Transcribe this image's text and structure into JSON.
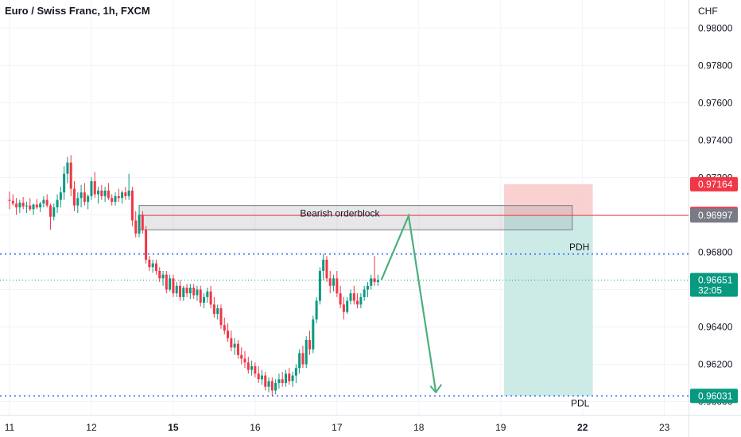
{
  "header": {
    "symbol": "Euro / Swiss Franc, 1h, FXCM"
  },
  "chart_data": {
    "type": "candlestick",
    "currency_label": "CHF",
    "y_ticks": [
      0.96,
      0.962,
      0.964,
      0.966,
      0.968,
      0.97,
      0.972,
      0.974,
      0.976,
      0.978,
      0.98
    ],
    "y_tick_labels": [
      "0.96000",
      "0.96200",
      "0.96400",
      "0.96600",
      "0.96800",
      "0.97000",
      "0.97200",
      "0.97400",
      "0.97600",
      "0.97800",
      "0.98000"
    ],
    "ylim": [
      0.9593,
      0.9815
    ],
    "x_ticks": [
      {
        "label": "11",
        "bold": false,
        "index": 0
      },
      {
        "label": "12",
        "bold": false,
        "index": 24
      },
      {
        "label": "15",
        "bold": true,
        "index": 48
      },
      {
        "label": "16",
        "bold": false,
        "index": 72
      },
      {
        "label": "17",
        "bold": false,
        "index": 96
      },
      {
        "label": "18",
        "bold": false,
        "index": 120
      },
      {
        "label": "19",
        "bold": false,
        "index": 144
      },
      {
        "label": "22",
        "bold": true,
        "index": 168
      },
      {
        "label": "23",
        "bold": false,
        "index": 192
      }
    ],
    "candles": [
      [
        0.9708,
        0.97125,
        0.9703,
        0.97075
      ],
      [
        0.97075,
        0.9711,
        0.9705,
        0.9706
      ],
      [
        0.9706,
        0.9709,
        0.97,
        0.9704
      ],
      [
        0.9704,
        0.9708,
        0.9701,
        0.97065
      ],
      [
        0.97065,
        0.97095,
        0.9703,
        0.97045
      ],
      [
        0.97045,
        0.9707,
        0.9701,
        0.9705
      ],
      [
        0.9705,
        0.9709,
        0.9702,
        0.9703
      ],
      [
        0.9703,
        0.9706,
        0.97,
        0.97055
      ],
      [
        0.97055,
        0.97085,
        0.9703,
        0.9704
      ],
      [
        0.9704,
        0.9707,
        0.97015,
        0.9706
      ],
      [
        0.9706,
        0.971,
        0.9704,
        0.9708
      ],
      [
        0.9708,
        0.9711,
        0.9704,
        0.9705
      ],
      [
        0.9705,
        0.9706,
        0.9692,
        0.9699
      ],
      [
        0.9699,
        0.9706,
        0.9697,
        0.9704
      ],
      [
        0.9704,
        0.9711,
        0.9701,
        0.9708
      ],
      [
        0.9708,
        0.9715,
        0.9704,
        0.9712
      ],
      [
        0.9712,
        0.9726,
        0.9708,
        0.9722
      ],
      [
        0.9722,
        0.9731,
        0.9717,
        0.9728
      ],
      [
        0.9728,
        0.9732,
        0.971,
        0.9714
      ],
      [
        0.9714,
        0.9718,
        0.9702,
        0.9705
      ],
      [
        0.9705,
        0.9712,
        0.9701,
        0.9709
      ],
      [
        0.9709,
        0.9716,
        0.9704,
        0.9712
      ],
      [
        0.9712,
        0.9717,
        0.9705,
        0.9707
      ],
      [
        0.9707,
        0.9711,
        0.9703,
        0.971
      ],
      [
        0.971,
        0.972,
        0.9708,
        0.9718
      ],
      [
        0.9718,
        0.9723,
        0.9709,
        0.9711
      ],
      [
        0.9711,
        0.9715,
        0.9706,
        0.9713
      ],
      [
        0.9713,
        0.9716,
        0.9708,
        0.971
      ],
      [
        0.971,
        0.9715,
        0.9707,
        0.9713
      ],
      [
        0.9713,
        0.9717,
        0.9708,
        0.9709
      ],
      [
        0.9709,
        0.9711,
        0.9705,
        0.9707
      ],
      [
        0.9707,
        0.9712,
        0.9705,
        0.971
      ],
      [
        0.971,
        0.9714,
        0.9707,
        0.9709
      ],
      [
        0.9709,
        0.9713,
        0.9706,
        0.9712
      ],
      [
        0.9712,
        0.9715,
        0.9708,
        0.971
      ],
      [
        0.971,
        0.9722,
        0.9708,
        0.9713
      ],
      [
        0.9713,
        0.9715,
        0.9694,
        0.9697
      ],
      [
        0.9697,
        0.9702,
        0.9688,
        0.969
      ],
      [
        0.969,
        0.9705,
        0.9688,
        0.97
      ],
      [
        0.97,
        0.9702,
        0.969,
        0.9692
      ],
      [
        0.9692,
        0.9694,
        0.9674,
        0.9676
      ],
      [
        0.9676,
        0.9678,
        0.967,
        0.9672
      ],
      [
        0.9672,
        0.9676,
        0.9669,
        0.9674
      ],
      [
        0.9674,
        0.9676,
        0.9668,
        0.967
      ],
      [
        0.967,
        0.9672,
        0.9664,
        0.9666
      ],
      [
        0.9666,
        0.967,
        0.9662,
        0.9668
      ],
      [
        0.9668,
        0.967,
        0.9658,
        0.966
      ],
      [
        0.966,
        0.9668,
        0.9659,
        0.9666
      ],
      [
        0.9666,
        0.9668,
        0.9656,
        0.9658
      ],
      [
        0.9658,
        0.9664,
        0.9656,
        0.9662
      ],
      [
        0.9662,
        0.9665,
        0.9654,
        0.9656
      ],
      [
        0.9656,
        0.9662,
        0.9654,
        0.9661
      ],
      [
        0.9661,
        0.9663,
        0.9656,
        0.9658
      ],
      [
        0.9658,
        0.9663,
        0.9655,
        0.9661
      ],
      [
        0.9661,
        0.9663,
        0.9655,
        0.9657
      ],
      [
        0.9657,
        0.9662,
        0.9654,
        0.966
      ],
      [
        0.966,
        0.9662,
        0.9651,
        0.9653
      ],
      [
        0.9653,
        0.9658,
        0.965,
        0.9656
      ],
      [
        0.9656,
        0.9661,
        0.9653,
        0.9659
      ],
      [
        0.9659,
        0.9662,
        0.965,
        0.9652
      ],
      [
        0.9652,
        0.9656,
        0.9645,
        0.9647
      ],
      [
        0.9647,
        0.9652,
        0.9644,
        0.965
      ],
      [
        0.965,
        0.9652,
        0.9639,
        0.9641
      ],
      [
        0.9641,
        0.9645,
        0.9636,
        0.9638
      ],
      [
        0.9638,
        0.9642,
        0.9632,
        0.9634
      ],
      [
        0.9634,
        0.9638,
        0.9627,
        0.9629
      ],
      [
        0.9629,
        0.9634,
        0.9625,
        0.9631
      ],
      [
        0.9631,
        0.9633,
        0.9623,
        0.9625
      ],
      [
        0.9625,
        0.9629,
        0.962,
        0.9623
      ],
      [
        0.9623,
        0.9627,
        0.9618,
        0.9621
      ],
      [
        0.9621,
        0.9624,
        0.9615,
        0.9617
      ],
      [
        0.9617,
        0.9622,
        0.9614,
        0.9619
      ],
      [
        0.9619,
        0.9621,
        0.9613,
        0.9615
      ],
      [
        0.9615,
        0.9619,
        0.961,
        0.9612
      ],
      [
        0.9612,
        0.9617,
        0.9609,
        0.9614
      ],
      [
        0.9614,
        0.9616,
        0.9606,
        0.9608
      ],
      [
        0.9608,
        0.9613,
        0.9605,
        0.9611
      ],
      [
        0.9611,
        0.9613,
        0.9603,
        0.9606
      ],
      [
        0.9606,
        0.9612,
        0.9604,
        0.961
      ],
      [
        0.961,
        0.9615,
        0.9607,
        0.9612
      ],
      [
        0.9612,
        0.9616,
        0.9608,
        0.961
      ],
      [
        0.961,
        0.9617,
        0.9608,
        0.9615
      ],
      [
        0.9615,
        0.9618,
        0.9609,
        0.9611
      ],
      [
        0.9611,
        0.9616,
        0.9608,
        0.9614
      ],
      [
        0.9614,
        0.962,
        0.961,
        0.9618
      ],
      [
        0.9618,
        0.9628,
        0.9615,
        0.9626
      ],
      [
        0.9626,
        0.963,
        0.9618,
        0.962
      ],
      [
        0.962,
        0.9635,
        0.9618,
        0.9633
      ],
      [
        0.9633,
        0.9638,
        0.9625,
        0.9628
      ],
      [
        0.9628,
        0.9646,
        0.9626,
        0.9644
      ],
      [
        0.9644,
        0.9656,
        0.9642,
        0.9654
      ],
      [
        0.9654,
        0.9672,
        0.9652,
        0.967
      ],
      [
        0.967,
        0.9679,
        0.9665,
        0.9676
      ],
      [
        0.9676,
        0.9678,
        0.9664,
        0.9666
      ],
      [
        0.9666,
        0.967,
        0.9658,
        0.9662
      ],
      [
        0.9662,
        0.9668,
        0.9659,
        0.9666
      ],
      [
        0.9666,
        0.967,
        0.9656,
        0.9658
      ],
      [
        0.9658,
        0.9662,
        0.965,
        0.9652
      ],
      [
        0.9652,
        0.9656,
        0.9644,
        0.9648
      ],
      [
        0.9648,
        0.9656,
        0.9647,
        0.9654
      ],
      [
        0.9654,
        0.966,
        0.9652,
        0.9658
      ],
      [
        0.9658,
        0.9662,
        0.9652,
        0.9654
      ],
      [
        0.9654,
        0.9658,
        0.965,
        0.9652
      ],
      [
        0.9652,
        0.9658,
        0.965,
        0.9656
      ],
      [
        0.9656,
        0.9662,
        0.9654,
        0.966
      ],
      [
        0.966,
        0.9664,
        0.9656,
        0.9662
      ],
      [
        0.9662,
        0.9668,
        0.966,
        0.9666
      ],
      [
        0.9666,
        0.9678,
        0.9662,
        0.9664
      ],
      [
        0.9664,
        0.9668,
        0.9662,
        0.96651
      ]
    ],
    "levels": [
      {
        "label": "0.97164",
        "value": 0.97164,
        "color": "#f23645"
      },
      {
        "label": "0.97005",
        "value": 0.97005,
        "color": "#f23645"
      },
      {
        "label": "0.96997",
        "value": 0.96997,
        "color": "#787b86"
      },
      {
        "label": "0.96651",
        "value": 0.96651,
        "color": "#089981",
        "countdown": "32:05"
      },
      {
        "label": "0.96031",
        "value": 0.96031,
        "color": "#089981"
      }
    ],
    "annotations": {
      "orderblock_label": "Bearish orderblock",
      "orderblock_top": 0.9705,
      "orderblock_bottom": 0.9692,
      "orderblock_x0": 38,
      "orderblock_x1": 165,
      "pdh_label": "PDH",
      "pdh_value": 0.9679,
      "pdl_label": "PDL",
      "pdl_value": 0.96031,
      "horizontal_line_value": 0.96997,
      "entry_value": 0.96997,
      "stop_value": 0.97164,
      "target_value": 0.96031,
      "position_x0": 145,
      "position_x1": 171,
      "path": [
        [
          109,
          0.96651
        ],
        [
          117,
          0.96995
        ],
        [
          125,
          0.9605
        ]
      ]
    },
    "colors": {
      "up": "#089981",
      "down": "#f23645",
      "grid": "#f0f3fa",
      "dotted": "#2962ff",
      "path": "#4caf7d",
      "risk_fill": "#f7c6c6",
      "reward_fill": "#c8e9e3"
    }
  }
}
